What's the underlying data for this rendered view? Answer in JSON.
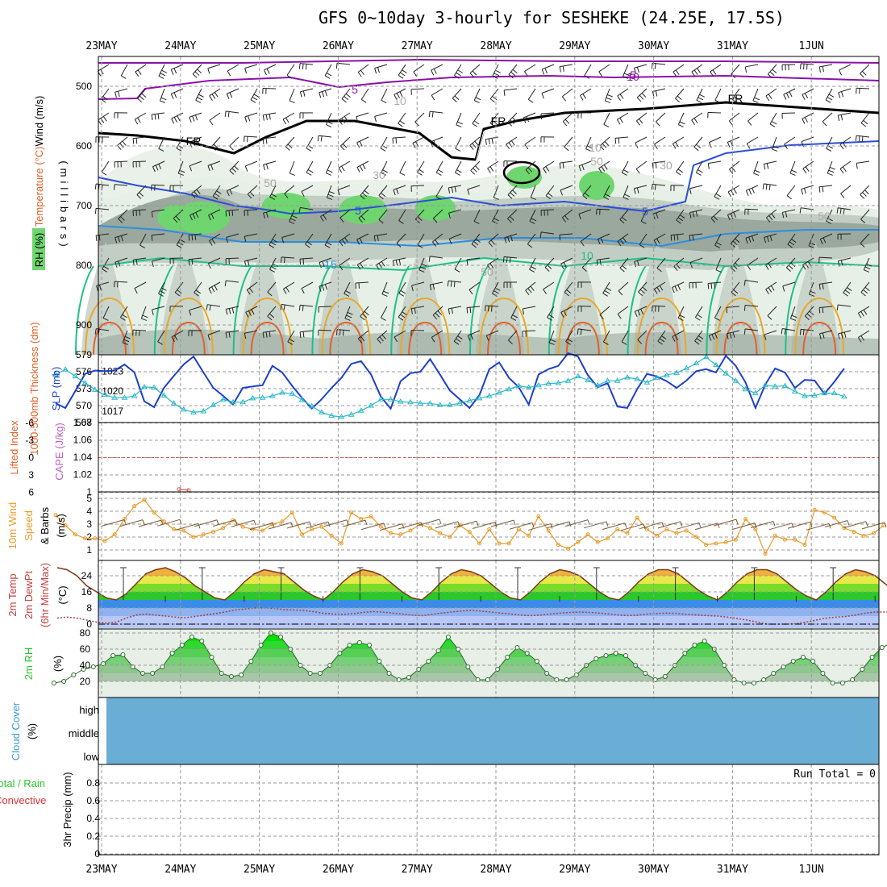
{
  "title": "GFS 0~10day 3-hourly for SESHEKE (24.25E, 17.5S)",
  "dates": [
    "23MAY",
    "24MAY",
    "25MAY",
    "26MAY",
    "27MAY",
    "28MAY",
    "29MAY",
    "30MAY",
    "31MAY",
    "1JUN"
  ],
  "colors": {
    "rh_dark": "#9aa89e",
    "rh_mid": "#c2cdc4",
    "rh_light": "#e7efe7",
    "rh_green": "#6fd66f",
    "t_purple": "#8a12a8",
    "t_blue": "#2a4fd6",
    "t_lightblue": "#2b8fe0",
    "t_teal": "#1ec08a",
    "t_orange": "#e8a82a",
    "t_red": "#e0622a",
    "slp": "#1f3fc8",
    "thick": "#2ab8c8",
    "wind": "#e89a2a",
    "cloud": "#6aaed6",
    "grid": "#9a9a9a"
  },
  "chart_data": [
    {
      "type": "contour",
      "panel": "upper-air",
      "ylabel_parts": [
        "RH (%)",
        "Temperature (°C)",
        "Wind (m/s)"
      ],
      "axis_label": "(millibars)",
      "y_ticks": [
        500,
        600,
        700,
        800,
        900
      ],
      "ylim": [
        950,
        450
      ],
      "contour_labels": [
        "FR",
        "FR",
        "FR",
        "5",
        "5",
        "5",
        "5",
        "10",
        "15",
        "10",
        "10",
        "30",
        "50",
        "50",
        "50",
        "10",
        "30",
        "50"
      ]
    },
    {
      "type": "line",
      "panel": "slp-thickness",
      "ylabel_left": "1000-500mb Thickness (dm)",
      "ylabel_right": "SLP (mb)",
      "left_ticks": [
        567,
        570,
        573,
        576,
        579
      ],
      "right_ticks": [
        1017,
        1020,
        1023
      ],
      "series": [
        {
          "name": "SLP (mb)",
          "values": [
            1018.2,
            1017.5,
            1020,
            1022.6,
            1023.1,
            1023,
            1023.1,
            1024,
            1022.8,
            1018.5,
            1017.6,
            1020.5,
            1022.3,
            1024,
            1025.2,
            1022.8,
            1020.5,
            1019.3,
            1018,
            1020.5,
            1020.7,
            1020.9,
            1023.8,
            1022.8,
            1020.8,
            1019,
            1017.4,
            1018.8,
            1020.5,
            1022,
            1024.1,
            1024.5,
            1022.5,
            1019.2,
            1017.4,
            1021.5,
            1022.7,
            1022.9,
            1024.8,
            1022.5,
            1020.1,
            1018.8,
            1017.5,
            1019.4,
            1023.3,
            1024.3,
            1022,
            1020.6,
            1018,
            1022.5,
            1023.3,
            1023.8,
            1025.7,
            1025.2,
            1022.4,
            1020.6,
            1021.2,
            1017.7,
            1017.5,
            1020.3,
            1022.6,
            1022.2,
            1021.5,
            1020.5,
            1021.6,
            1023,
            1023.3,
            1022.8,
            1025.3,
            1023.8,
            1021.3,
            1017.5,
            1021,
            1023.4,
            1022.8,
            1020.5,
            1021.7,
            1021.6,
            1019.6,
            1021.4,
            1023.4
          ]
        },
        {
          "name": "1000-500mb Thickness (dm)",
          "values": [
            575.5,
            576.4,
            575.2,
            574,
            572.8,
            571.9,
            571.4,
            571.4,
            571.7,
            573.3,
            573.2,
            571.8,
            570.4,
            569.3,
            568.8,
            569,
            570.1,
            571.1,
            570.6,
            570.6,
            571.3,
            571.4,
            571.7,
            572.3,
            572.1,
            571,
            569.9,
            568.8,
            568.2,
            568,
            568.4,
            569.1,
            570,
            571.1,
            571.1,
            570.7,
            570.6,
            570.4,
            570.4,
            570.1,
            570.1,
            570.4,
            570.9,
            571.3,
            571.7,
            572.3,
            572.9,
            573.5,
            573.2,
            573.6,
            573.9,
            574,
            574.4,
            575.2,
            574.5,
            573.6,
            574.4,
            574.4,
            575,
            574.7,
            574.1,
            574.9,
            575.4,
            575.8,
            576.6,
            577.5,
            578.6,
            577.2,
            575.7,
            574.4,
            572.9,
            572.2,
            573.6,
            573.4,
            573.5,
            572.5,
            571.7,
            571.8,
            572.2,
            572.2,
            571.6
          ]
        }
      ]
    },
    {
      "type": "line",
      "panel": "lifted-cape",
      "ylabel_left": "Lifted Index",
      "ylabel_right": "CAPE (J/kg)",
      "left_ticks": [
        -6,
        -3,
        0,
        3,
        6
      ],
      "right_ticks": [
        1,
        1.02,
        1.04,
        1.06,
        1.08
      ],
      "series": [
        {
          "name": "CAPE (J/kg)",
          "values": [
            1.003,
            1.002
          ]
        }
      ]
    },
    {
      "type": "line",
      "panel": "wind10m",
      "ylabel": "10m Wind Speed & Barbs (m/s)",
      "y_ticks": [
        1,
        2,
        3,
        4,
        5
      ],
      "ylim": [
        0.5,
        5.5
      ],
      "series": [
        {
          "name": "10m Wind Speed",
          "values": [
            3.7,
            2.9,
            2.2,
            1.9,
            1.9,
            1.7,
            2.2,
            3.4,
            4.4,
            4.9,
            3.9,
            3.2,
            2.6,
            2.5,
            2,
            2.2,
            2.4,
            2.7,
            3.3,
            2.8,
            2.6,
            2.5,
            3,
            3.2,
            3.9,
            2.2,
            2.6,
            2.8,
            2.1,
            1.5,
            3.9,
            3.4,
            3.6,
            2.8,
            2.3,
            2.2,
            2.5,
            3,
            2.7,
            2.3,
            2,
            2.9,
            2.4,
            1.5,
            2.6,
            1.5,
            1.5,
            2.6,
            2.1,
            3.6,
            2.5,
            1.4,
            1.1,
            1.6,
            2.2,
            1.6,
            1.9,
            2.6,
            2.3,
            3.5,
            2.6,
            2.1,
            2.6,
            2.3,
            2.5,
            2,
            1.4,
            1.5,
            1.6,
            1.8,
            3.4,
            2.6,
            0.7,
            2.1,
            1.8,
            1.8,
            1.4,
            4.1,
            3.9,
            3.5,
            2.7,
            2.4,
            2.1,
            2.3,
            2.9
          ]
        }
      ]
    },
    {
      "type": "area",
      "panel": "temperature2m",
      "ylabel": "2m Temp 2m DewPt (6hr Min/Max) (°C)",
      "y_ticks": [
        0,
        8,
        16,
        24
      ],
      "ylim": [
        -1,
        30
      ],
      "series": [
        {
          "name": "2m Temp",
          "values": [
            28,
            27,
            24,
            19,
            16,
            13,
            12,
            15,
            20,
            25,
            27,
            28,
            26,
            23,
            19,
            16,
            13,
            12,
            16,
            21,
            25,
            27,
            26,
            25,
            21,
            17,
            14,
            12,
            16,
            21,
            25,
            27,
            26,
            24,
            20,
            16,
            13,
            12,
            16,
            21,
            25,
            27,
            26,
            24,
            20,
            16,
            13,
            12,
            16,
            21,
            25,
            27,
            26,
            24,
            20,
            16,
            13,
            12,
            16,
            21,
            25,
            27,
            27,
            25,
            21,
            17,
            14,
            12,
            16,
            21,
            25,
            27,
            27,
            25,
            21,
            17,
            14,
            12,
            16,
            21,
            25,
            27,
            26,
            24,
            20,
            16,
            13,
            14
          ]
        },
        {
          "name": "2m DewPt",
          "values": [
            3,
            3.5,
            3,
            2,
            1,
            0.5,
            1,
            3,
            4.5,
            5,
            4.5,
            4,
            3.5,
            3.2,
            3.8,
            4.5,
            5.2,
            6,
            7,
            7.5,
            8,
            8,
            7.8,
            7.2,
            7,
            6.8,
            6.2,
            5.4,
            5,
            4.8,
            5.2,
            5.8,
            6.2,
            6,
            5.5,
            5,
            4.5,
            4.2,
            4.8,
            5.5,
            6,
            6.5,
            6.8,
            6.5,
            6,
            5.5,
            5,
            4.5,
            4.2,
            4.5,
            5,
            5.5,
            5.8,
            6,
            5.8,
            5.5,
            5,
            4.5,
            4.2,
            4.5,
            5,
            5.3,
            5.5,
            5.2,
            4.8,
            4.5,
            4.2,
            4,
            3.5,
            2.8,
            2,
            1,
            0,
            0,
            0,
            0.2,
            1,
            2,
            3,
            3.5,
            3.8,
            4.5,
            5.5,
            6,
            6,
            6
          ]
        }
      ]
    },
    {
      "type": "area",
      "panel": "rh2m",
      "ylabel": "2m RH (%)",
      "y_ticks": [
        20,
        40,
        60,
        80
      ],
      "ylim": [
        10,
        84
      ],
      "series": [
        {
          "name": "2m RH",
          "values": [
            18,
            20,
            28,
            35,
            38,
            42,
            52,
            53,
            38,
            30,
            30,
            38,
            55,
            65,
            75,
            70,
            50,
            30,
            26,
            28,
            45,
            65,
            80,
            75,
            60,
            40,
            30,
            30,
            40,
            55,
            65,
            68,
            65,
            45,
            30,
            22,
            25,
            35,
            45,
            58,
            75,
            60,
            38,
            22,
            22,
            35,
            50,
            62,
            55,
            45,
            30,
            22,
            22,
            28,
            40,
            48,
            52,
            55,
            52,
            40,
            30,
            22,
            26,
            40,
            55,
            65,
            70,
            60,
            40,
            22,
            18,
            18,
            22,
            30,
            38,
            45,
            50,
            45,
            30,
            18,
            18,
            22,
            35,
            50,
            62,
            68,
            65
          ]
        }
      ]
    },
    {
      "type": "bar",
      "panel": "cloud-cover",
      "ylabel": "Cloud Cover (%)",
      "levels": [
        "high",
        "middle",
        "low"
      ]
    },
    {
      "type": "bar",
      "panel": "precip",
      "ylabel": "3hr Precip (mm)",
      "ylabel_left": "Total / Rain Convective",
      "y_ticks": [
        "0",
        "0.2",
        "0.4",
        "0.6",
        "0.8"
      ],
      "run_total": "Run Total = 0",
      "values": []
    }
  ]
}
